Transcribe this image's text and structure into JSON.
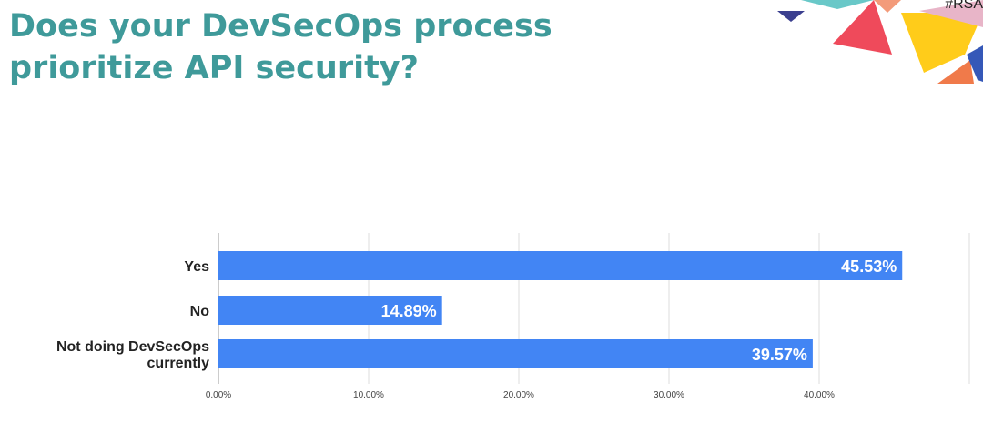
{
  "slide": {
    "title": "Does your DevSecOps process prioritize API security?",
    "hashtag": "#RSA"
  },
  "colors": {
    "title": "#3f9a9a",
    "bar": "#4285f4",
    "grid": "#dddddd"
  },
  "chart_data": {
    "type": "bar",
    "orientation": "horizontal",
    "title": "",
    "categories": [
      "Yes",
      "No",
      "Not doing DevSecOps currently"
    ],
    "category_lines": [
      [
        "Yes"
      ],
      [
        "No"
      ],
      [
        "Not doing DevSecOps",
        "currently"
      ]
    ],
    "values": [
      45.53,
      14.89,
      39.57
    ],
    "value_labels": [
      "45.53%",
      "14.89%",
      "39.57%"
    ],
    "xlim": [
      0,
      50
    ],
    "xticks": [
      0,
      10,
      20,
      30,
      40
    ],
    "xtick_labels": [
      "0.00%",
      "10.00%",
      "20.00%",
      "30.00%",
      "40.00%"
    ],
    "grid": true,
    "legend": false
  }
}
